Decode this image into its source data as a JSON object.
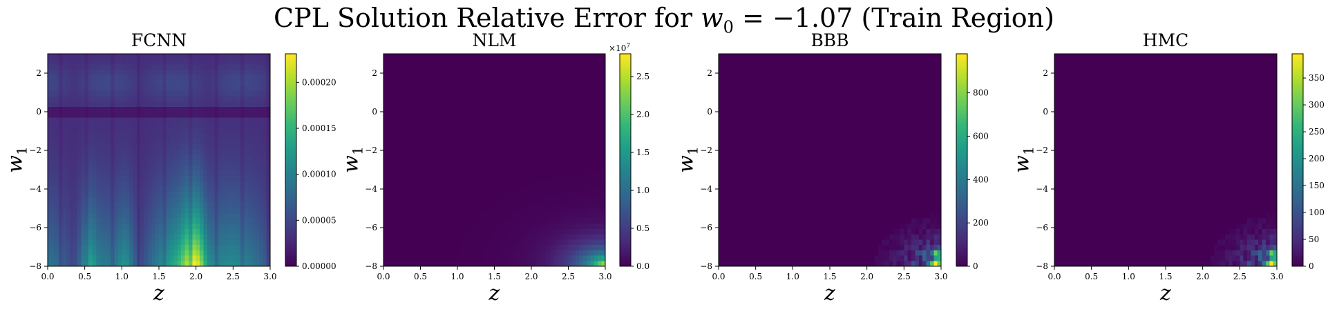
{
  "figure": {
    "title_prefix": "CPL Solution Relative Error for ",
    "title_math": "w",
    "title_math_sub": "0",
    "title_eq": " = −1.07 ",
    "title_suffix": "(Train Region)",
    "colormap": "viridis"
  },
  "chart_data": [
    {
      "type": "heatmap",
      "title": "FCNN",
      "xlabel": "z",
      "ylabel": "w",
      "ylabel_sub": "1",
      "xlim": [
        0.0,
        3.0
      ],
      "ylim": [
        -8,
        3
      ],
      "xticks": [
        "0.0",
        "0.5",
        "1.0",
        "1.5",
        "2.0",
        "2.5",
        "3.0"
      ],
      "yticks": [
        "−8",
        "−6",
        "−4",
        "−2",
        "0",
        "2"
      ],
      "colorbar": {
        "min": 0,
        "max": 0.000231,
        "ticks": [
          "0.00000",
          "0.00005",
          "0.00010",
          "0.00015",
          "0.00020"
        ],
        "tick_values": [
          0,
          5e-05,
          0.0001,
          0.00015,
          0.0002
        ],
        "multiplier": ""
      },
      "pattern": "oscillating"
    },
    {
      "type": "heatmap",
      "title": "NLM",
      "xlabel": "z",
      "ylabel": "w",
      "ylabel_sub": "1",
      "xlim": [
        0.0,
        3.0
      ],
      "ylim": [
        -8,
        3
      ],
      "xticks": [
        "0.0",
        "0.5",
        "1.0",
        "1.5",
        "2.0",
        "2.5",
        "3.0"
      ],
      "yticks": [
        "−8",
        "−6",
        "−4",
        "−2",
        "0",
        "2"
      ],
      "colorbar": {
        "min": 0,
        "max": 2.8,
        "ticks": [
          "0.0",
          "0.5",
          "1.0",
          "1.5",
          "2.0",
          "2.5"
        ],
        "tick_values": [
          0,
          0.5,
          1.0,
          1.5,
          2.0,
          2.5
        ],
        "multiplier": "×10",
        "multiplier_exp": "7"
      },
      "pattern": "corner_smooth"
    },
    {
      "type": "heatmap",
      "title": "BBB",
      "xlabel": "z",
      "ylabel": "w",
      "ylabel_sub": "1",
      "xlim": [
        0.0,
        3.0
      ],
      "ylim": [
        -8,
        3
      ],
      "xticks": [
        "0.0",
        "0.5",
        "1.0",
        "1.5",
        "2.0",
        "2.5",
        "3.0"
      ],
      "yticks": [
        "−8",
        "−6",
        "−4",
        "−2",
        "0",
        "2"
      ],
      "colorbar": {
        "min": 0,
        "max": 980,
        "ticks": [
          "0",
          "200",
          "400",
          "600",
          "800"
        ],
        "tick_values": [
          0,
          200,
          400,
          600,
          800
        ],
        "multiplier": ""
      },
      "pattern": "corner_noisy"
    },
    {
      "type": "heatmap",
      "title": "HMC",
      "xlabel": "z",
      "ylabel": "w",
      "ylabel_sub": "1",
      "xlim": [
        0.0,
        3.0
      ],
      "ylim": [
        -8,
        3
      ],
      "xticks": [
        "0.0",
        "0.5",
        "1.0",
        "1.5",
        "2.0",
        "2.5",
        "3.0"
      ],
      "yticks": [
        "−8",
        "−6",
        "−4",
        "−2",
        "0",
        "2"
      ],
      "colorbar": {
        "min": 0,
        "max": 395,
        "ticks": [
          "0",
          "50",
          "100",
          "150",
          "200",
          "250",
          "300",
          "350"
        ],
        "tick_values": [
          0,
          50,
          100,
          150,
          200,
          250,
          300,
          350
        ],
        "multiplier": ""
      },
      "pattern": "corner_noisy"
    }
  ]
}
